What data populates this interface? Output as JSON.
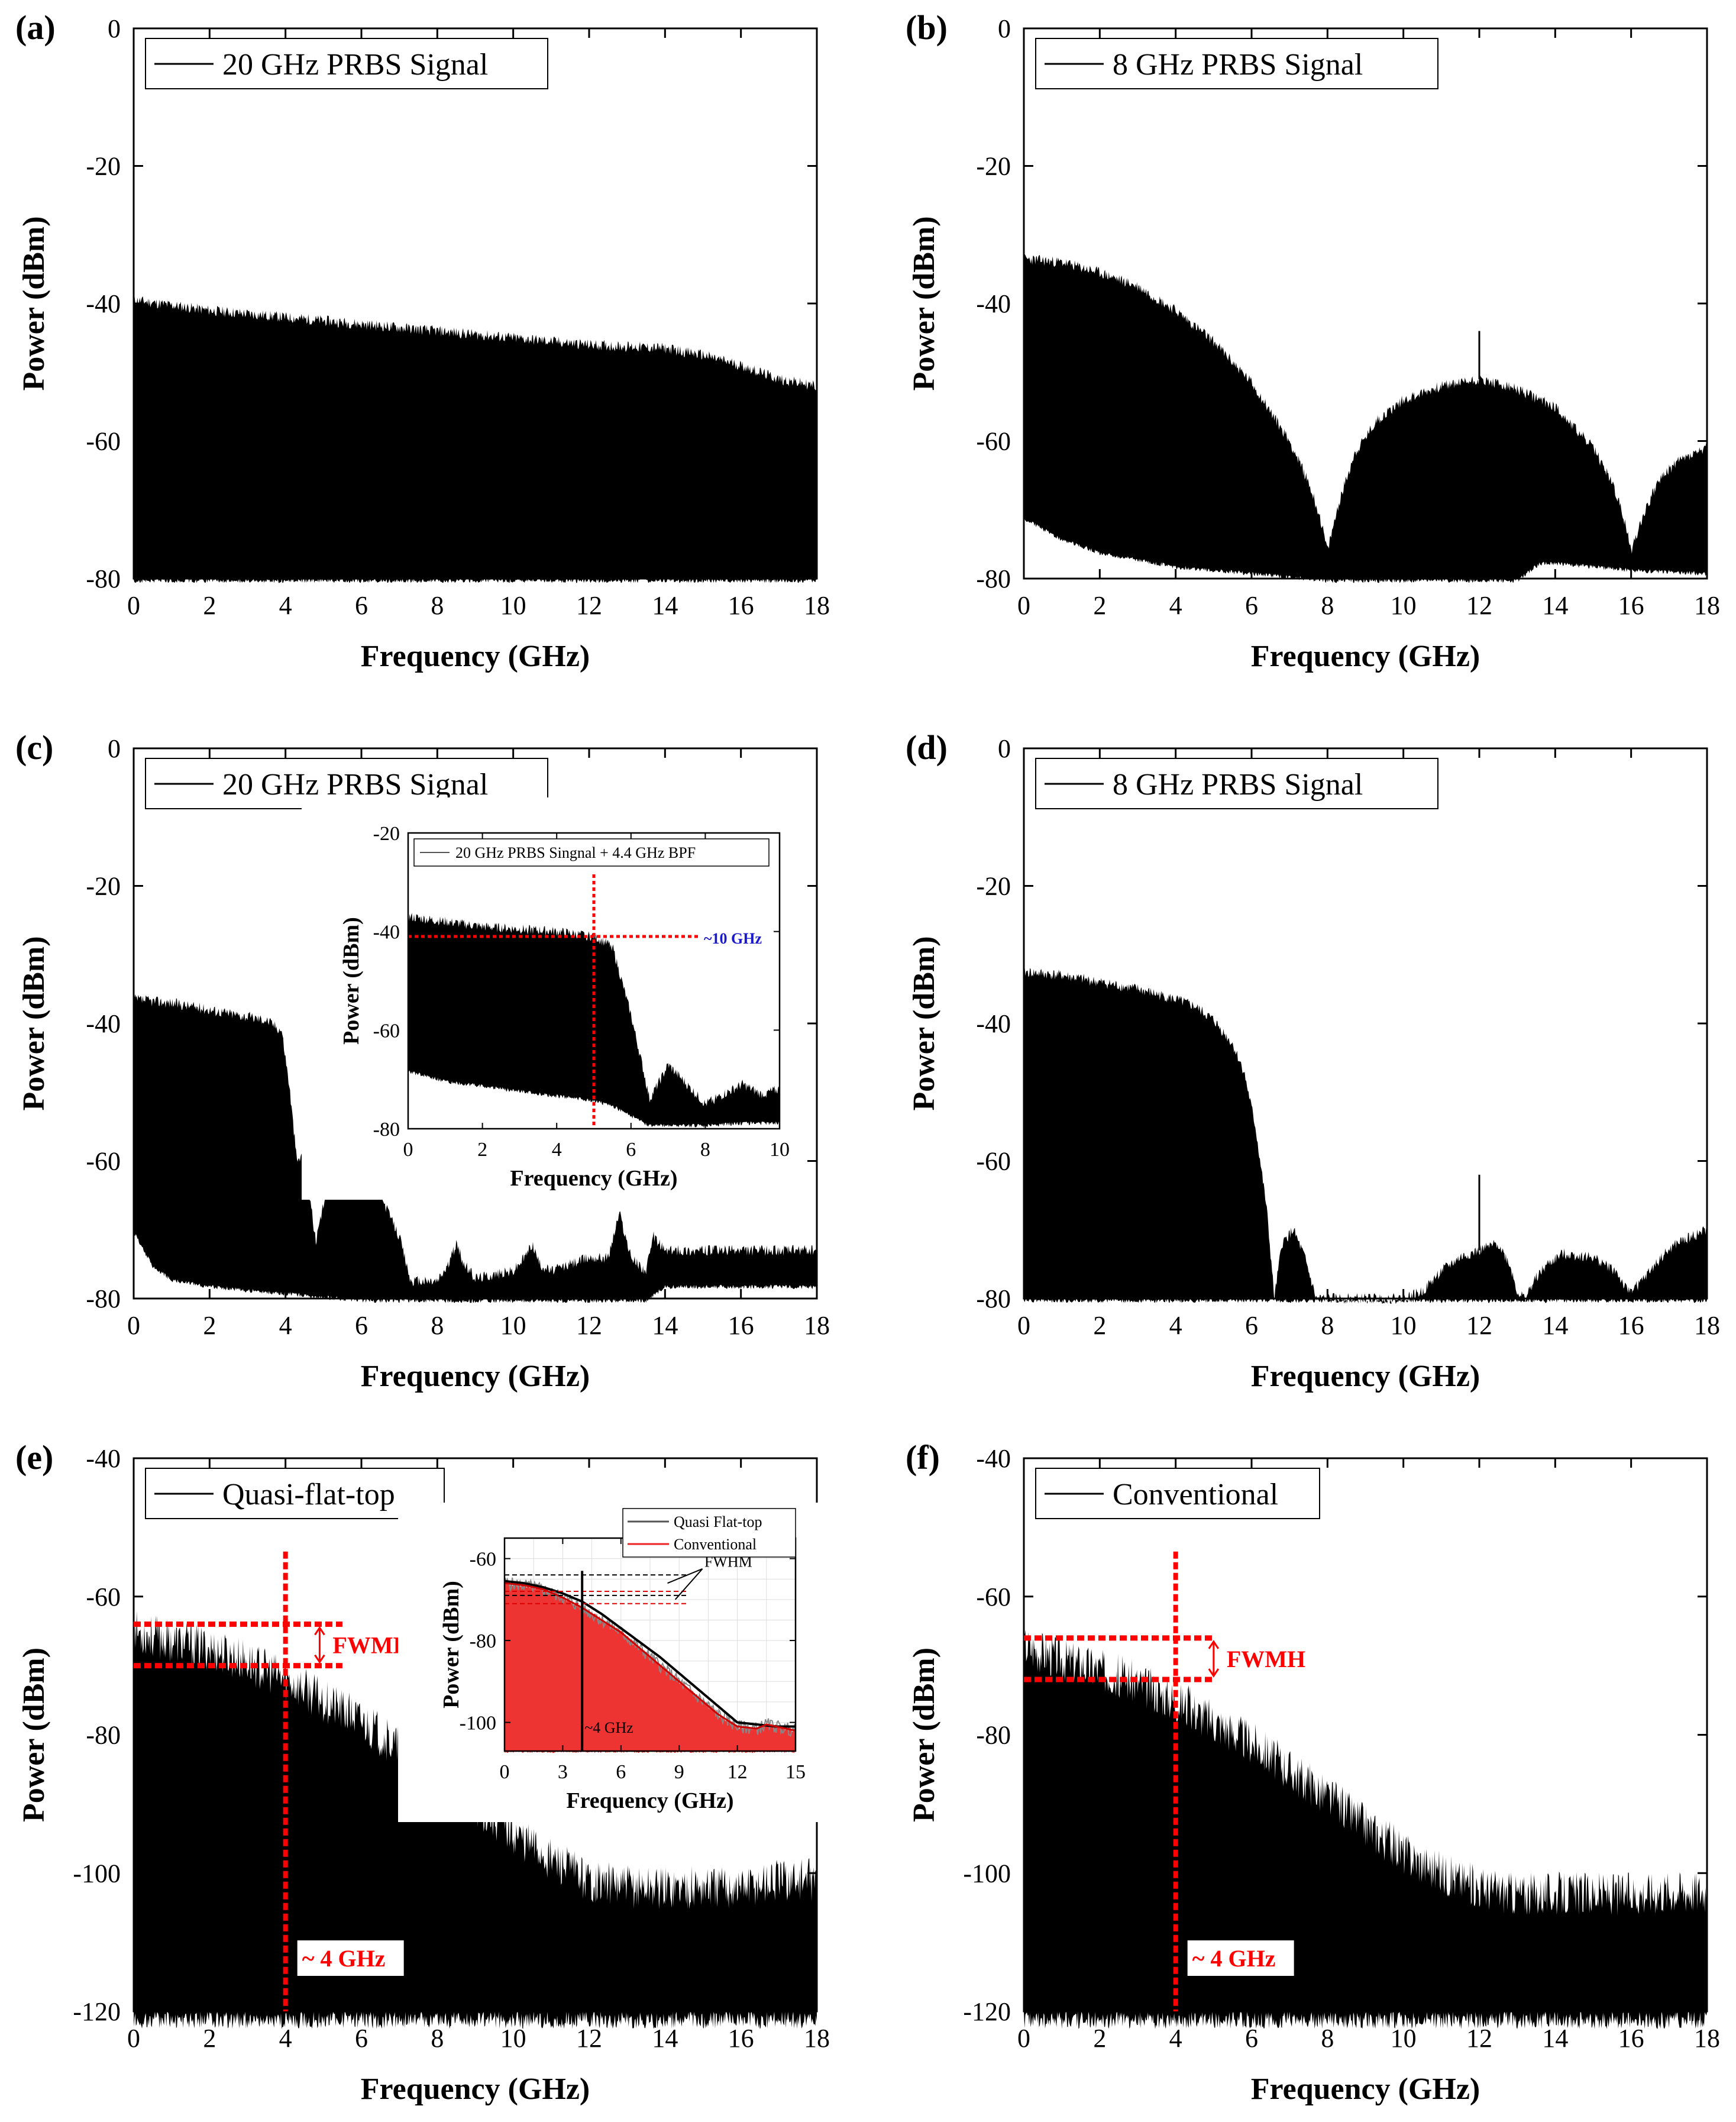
{
  "chart_data": [
    {
      "id": "a",
      "panel_label": "(a)",
      "type": "area",
      "legend": "20 GHz PRBS Signal",
      "xlabel": "Frequency (GHz)",
      "ylabel": "Power (dBm)",
      "xlim": [
        0,
        18
      ],
      "ylim": [
        -80,
        0
      ],
      "xticks": [
        0,
        2,
        4,
        6,
        8,
        10,
        12,
        14,
        16,
        18
      ],
      "yticks": [
        0,
        -20,
        -40,
        -60,
        -80
      ],
      "series": [
        {
          "name": "upper envelope",
          "x": [
            0,
            2,
            4,
            6,
            8,
            10,
            12,
            14,
            15,
            16,
            17,
            18
          ],
          "y": [
            -39.5,
            -41,
            -42,
            -43,
            -44,
            -45,
            -46,
            -46.5,
            -47.5,
            -49,
            -51,
            -52
          ]
        },
        {
          "name": "lower envelope",
          "x": [
            0,
            18
          ],
          "y": [
            -80,
            -80
          ]
        }
      ]
    },
    {
      "id": "b",
      "panel_label": "(b)",
      "type": "area",
      "legend": "8 GHz PRBS Signal",
      "xlabel": "Frequency (GHz)",
      "ylabel": "Power (dBm)",
      "xlim": [
        0,
        18
      ],
      "ylim": [
        -80,
        0
      ],
      "xticks": [
        0,
        2,
        4,
        6,
        8,
        10,
        12,
        14,
        16,
        18
      ],
      "yticks": [
        0,
        -20,
        -40,
        -60,
        -80
      ],
      "spur": {
        "x": 12,
        "y": -44
      },
      "series": [
        {
          "name": "upper envelope",
          "x": [
            0,
            1,
            2,
            3,
            4,
            5,
            6,
            7,
            7.5,
            7.8,
            8,
            8.3,
            8.7,
            9.3,
            10,
            11,
            12,
            13,
            14,
            15,
            15.5,
            15.8,
            16,
            16.3,
            16.7,
            17.2,
            18
          ],
          "y": [
            -33.5,
            -34,
            -35.5,
            -37.5,
            -41,
            -45.5,
            -51.5,
            -60,
            -66,
            -71,
            -76,
            -69,
            -62,
            -57,
            -54,
            -52,
            -51,
            -52.5,
            -55,
            -61,
            -66,
            -71,
            -76,
            -71,
            -66,
            -63,
            -61
          ]
        },
        {
          "name": "lower envelope",
          "x": [
            0,
            1,
            2,
            3,
            4,
            5,
            6,
            7,
            8,
            10,
            12,
            13,
            13.6,
            14,
            16,
            18
          ],
          "y": [
            -71,
            -74,
            -76,
            -77,
            -78,
            -78.5,
            -79,
            -79.5,
            -80,
            -80,
            -80,
            -80,
            -77.5,
            -77.5,
            -78.5,
            -79
          ]
        }
      ]
    },
    {
      "id": "c",
      "panel_label": "(c)",
      "type": "area",
      "legend": "20 GHz PRBS Signal",
      "xlabel": "Frequency (GHz)",
      "ylabel": "Power (dBm)",
      "xlim": [
        0,
        18
      ],
      "ylim": [
        -80,
        0
      ],
      "xticks": [
        0,
        2,
        4,
        6,
        8,
        10,
        12,
        14,
        16,
        18
      ],
      "yticks": [
        0,
        -20,
        -40,
        -60,
        -80
      ],
      "series": [
        {
          "name": "upper envelope",
          "x": [
            0,
            1,
            2,
            3,
            3.5,
            3.9,
            4.1,
            4.3,
            4.5,
            4.8,
            5.2,
            5.6,
            6,
            6.5,
            7,
            7.3,
            8,
            8.3,
            8.5,
            8.7,
            9,
            10,
            10.3,
            10.5,
            10.7,
            11,
            12,
            12.5,
            12.8,
            13.1,
            13.5,
            13.7,
            14,
            16,
            17,
            18
          ],
          "y": [
            -36.5,
            -37,
            -38,
            -39,
            -39.5,
            -41,
            -49,
            -60,
            -59,
            -72,
            -61,
            -57,
            -59,
            -65,
            -71,
            -77.5,
            -77.5,
            -75,
            -72,
            -75,
            -77,
            -76,
            -74,
            -72,
            -75,
            -76,
            -74,
            -74,
            -67.5,
            -74,
            -76,
            -71,
            -73,
            -73,
            -73,
            -73
          ]
        },
        {
          "name": "lower envelope",
          "x": [
            0,
            0.5,
            1,
            2,
            3,
            4,
            5,
            6,
            7,
            8,
            13.5,
            14,
            18
          ],
          "y": [
            -70,
            -75,
            -77,
            -78,
            -78.5,
            -79,
            -79.5,
            -80,
            -80,
            -80,
            -80,
            -78,
            -78
          ]
        }
      ],
      "inset": {
        "legend": "20 GHz PRBS Singnal + 4.4 GHz BPF",
        "xlabel": "Frequency (GHz)",
        "ylabel": "Power (dBm)",
        "xlim": [
          0,
          10
        ],
        "ylim": [
          -80,
          -20
        ],
        "xticks": [
          0,
          2,
          4,
          6,
          8,
          10
        ],
        "yticks": [
          -20,
          -40,
          -60,
          -80
        ],
        "marker_x": 5,
        "marker_y": -41,
        "annotation": "~10 GHz",
        "series": [
          {
            "name": "upper envelope",
            "x": [
              0,
              1,
              2,
              3,
              4,
              5,
              5.5,
              6,
              6.3,
              6.5,
              6.8,
              7,
              7.5,
              8,
              8.5,
              9,
              9.5,
              10
            ],
            "y": [
              -37,
              -38,
              -39,
              -39.5,
              -40,
              -41,
              -43,
              -57,
              -67,
              -74,
              -70,
              -67,
              -71,
              -75,
              -73,
              -71,
              -73,
              -72
            ]
          },
          {
            "name": "lower envelope",
            "x": [
              0,
              1,
              2,
              3,
              4,
              5,
              5.5,
              6,
              6.5,
              7,
              8,
              9,
              10
            ],
            "y": [
              -68,
              -70,
              -71,
              -72,
              -73,
              -74,
              -75,
              -77,
              -79,
              -79,
              -79,
              -78.5,
              -78.5
            ]
          }
        ]
      }
    },
    {
      "id": "d",
      "panel_label": "(d)",
      "type": "area",
      "legend": "8 GHz PRBS Signal",
      "xlabel": "Frequency (GHz)",
      "ylabel": "Power (dBm)",
      "xlim": [
        0,
        18
      ],
      "ylim": [
        -80,
        0
      ],
      "xticks": [
        0,
        2,
        4,
        6,
        8,
        10,
        12,
        14,
        16,
        18
      ],
      "yticks": [
        0,
        -20,
        -40,
        -60,
        -80
      ],
      "spur": {
        "x": 12,
        "y": -62
      },
      "series": [
        {
          "name": "upper envelope",
          "x": [
            0,
            1,
            2,
            3,
            4,
            4.5,
            5,
            5.5,
            5.8,
            6.1,
            6.4,
            6.6,
            6.8,
            7.1,
            7.4,
            7.7,
            8,
            10,
            10.5,
            11,
            11.5,
            12,
            12.5,
            12.8,
            13,
            13.2,
            13.5,
            13.8,
            14.2,
            15,
            15.6,
            15.9,
            16.2,
            16.5,
            16.8,
            17.2,
            17.6,
            18
          ],
          "y": [
            -32.5,
            -33,
            -34,
            -35,
            -36.5,
            -37.5,
            -39.5,
            -43,
            -47,
            -55,
            -67,
            -80,
            -72,
            -70,
            -74,
            -80,
            -80,
            -80,
            -79,
            -76,
            -74,
            -73,
            -72,
            -75,
            -79,
            -80,
            -77,
            -75,
            -73.5,
            -74,
            -76,
            -79,
            -78,
            -76,
            -74,
            -72,
            -71,
            -70
          ]
        },
        {
          "name": "lower envelope",
          "x": [
            0,
            18
          ],
          "y": [
            -80,
            -80
          ]
        }
      ]
    },
    {
      "id": "e",
      "panel_label": "(e)",
      "type": "area",
      "legend": "Quasi-flat-top",
      "xlabel": "Frequency (GHz)",
      "ylabel": "Power (dBm)",
      "xlim": [
        0,
        18
      ],
      "ylim": [
        -120,
        -40
      ],
      "xticks": [
        0,
        2,
        4,
        6,
        8,
        10,
        12,
        14,
        16,
        18
      ],
      "yticks": [
        -40,
        -60,
        -80,
        -100,
        -120
      ],
      "fwmh": {
        "label": "FWMH",
        "top": -64,
        "bottom": -70
      },
      "marker": {
        "x": 4,
        "label": "~ 4 GHz"
      },
      "series": [
        {
          "name": "upper envelope",
          "x": [
            0,
            1,
            2,
            3,
            4,
            5,
            6,
            7,
            8,
            9,
            10,
            11,
            12,
            13,
            14,
            15,
            16,
            17,
            18
          ],
          "y": [
            -65,
            -66.5,
            -67.5,
            -69.5,
            -72,
            -75,
            -78,
            -82,
            -86,
            -90,
            -94,
            -98,
            -101,
            -102,
            -102,
            -102,
            -102,
            -101,
            -101
          ]
        },
        {
          "name": "lower envelope",
          "x": [
            0,
            18
          ],
          "y": [
            -120,
            -120
          ]
        }
      ],
      "inset": {
        "legend": [
          "Quasi Flat-top",
          "Conventional"
        ],
        "legend_colors": [
          "#555555",
          "#ee2222"
        ],
        "xlabel": "Frequency (GHz)",
        "ylabel": "Power (dBm)",
        "xlim": [
          0,
          15
        ],
        "ylim": [
          -107,
          -55
        ],
        "xticks": [
          0,
          3,
          6,
          9,
          12,
          15
        ],
        "yticks": [
          -60,
          -80,
          -100
        ],
        "marker_x": 4,
        "marker_label": "~4 GHz",
        "fwhm_label": "FWHM",
        "series": [
          {
            "name": "Conventional",
            "x": [
              0,
              1,
              2,
              3,
              4,
              5,
              6,
              7,
              8,
              9,
              10,
              11,
              12,
              13,
              13.5,
              14,
              15
            ],
            "y": [
              -66,
              -66.5,
              -67.5,
              -69.5,
              -72,
              -75,
              -78,
              -82,
              -86,
              -90,
              -94,
              -98,
              -101,
              -101.5,
              -100.5,
              -101,
              -102
            ]
          },
          {
            "name": "Quasi Flat-top",
            "x": [
              0,
              1,
              2,
              3,
              4,
              5,
              6,
              7,
              8,
              9,
              10,
              11,
              12,
              13,
              14,
              15
            ],
            "y": [
              -65.5,
              -66,
              -67,
              -68.5,
              -70.5,
              -73.5,
              -77,
              -80.5,
              -84,
              -88,
              -92,
              -96,
              -100,
              -100.5,
              -101,
              -101
            ]
          }
        ]
      }
    },
    {
      "id": "f",
      "panel_label": "(f)",
      "type": "area",
      "legend": "Conventional",
      "xlabel": "Frequency (GHz)",
      "ylabel": "Power (dBm)",
      "xlim": [
        0,
        18
      ],
      "ylim": [
        -120,
        -40
      ],
      "xticks": [
        0,
        2,
        4,
        6,
        8,
        10,
        12,
        14,
        16,
        18
      ],
      "yticks": [
        -40,
        -60,
        -80,
        -100,
        -120
      ],
      "fwmh": {
        "label": "FWMH",
        "top": -66,
        "bottom": -72
      },
      "marker": {
        "x": 4,
        "label": "~ 4 GHz"
      },
      "series": [
        {
          "name": "upper envelope",
          "x": [
            0,
            1,
            2,
            3,
            4,
            5,
            6,
            7,
            8,
            9,
            10,
            11,
            12,
            13,
            14,
            15,
            16,
            17,
            18
          ],
          "y": [
            -67,
            -69,
            -70.5,
            -72.5,
            -75,
            -78,
            -81,
            -85,
            -89,
            -93,
            -97,
            -100,
            -102,
            -103,
            -103,
            -103,
            -103,
            -102.5,
            -102.5
          ]
        },
        {
          "name": "lower envelope",
          "x": [
            0,
            18
          ],
          "y": [
            -120,
            -120
          ]
        }
      ]
    }
  ]
}
